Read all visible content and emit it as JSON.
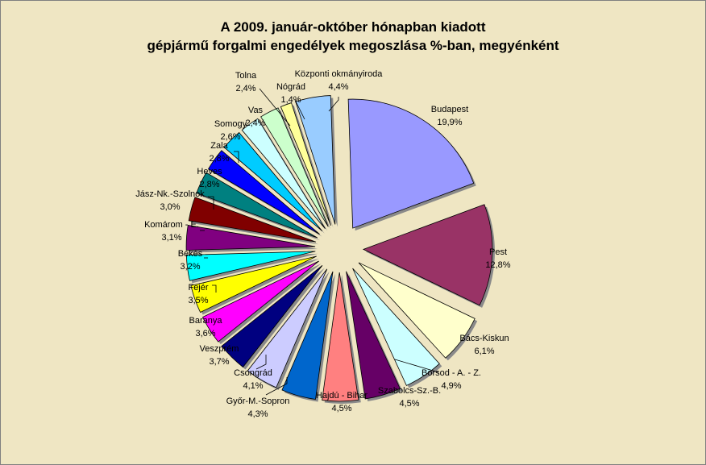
{
  "chart_data": {
    "type": "pie",
    "title_lines": [
      "A  2009. január-október hónapban kiadott",
      "gépjármű forgalmi engedélyek megoszlása %-ban, megyénként"
    ],
    "slices": [
      {
        "name": "Budapest",
        "label": "19,9%",
        "value": 19.9,
        "color": "#9999ff"
      },
      {
        "name": "Pest",
        "label": "12,8%",
        "value": 12.8,
        "color": "#993366"
      },
      {
        "name": "Bács-Kiskun",
        "label": "6,1%",
        "value": 6.1,
        "color": "#ffffcc"
      },
      {
        "name": "Borsod - A. - Z.",
        "label": "4,9%",
        "value": 4.9,
        "color": "#ccffff"
      },
      {
        "name": "Szabolcs-Sz.-B.",
        "label": "4,5%",
        "value": 4.5,
        "color": "#660066"
      },
      {
        "name": "Hajdú - Bihar",
        "label": "4,5%",
        "value": 4.5,
        "color": "#ff8080"
      },
      {
        "name": "Győr-M.-Sopron",
        "label": "4,3%",
        "value": 4.3,
        "color": "#0066cc"
      },
      {
        "name": "Csongrád",
        "label": "4,1%",
        "value": 4.1,
        "color": "#ccccff"
      },
      {
        "name": "Veszprém",
        "label": "3,7%",
        "value": 3.7,
        "color": "#000080"
      },
      {
        "name": "Baranya",
        "label": "3,6%",
        "value": 3.6,
        "color": "#ff00ff"
      },
      {
        "name": "Fejér",
        "label": "3,5%",
        "value": 3.5,
        "color": "#ffff00"
      },
      {
        "name": "Békés",
        "label": "3,2%",
        "value": 3.2,
        "color": "#00ffff"
      },
      {
        "name": "Komárom - E.",
        "label": "3,1%",
        "value": 3.1,
        "color": "#800080"
      },
      {
        "name": "Jász-Nk.-Szolnok",
        "label": "3,0%",
        "value": 3.0,
        "color": "#800000"
      },
      {
        "name": "Heves",
        "label": "2,8%",
        "value": 2.8,
        "color": "#008080"
      },
      {
        "name": "Zala",
        "label": "2,8%",
        "value": 2.8,
        "color": "#0000ff"
      },
      {
        "name": "Somogy",
        "label": "2,6%",
        "value": 2.6,
        "color": "#00ccff"
      },
      {
        "name": "Vas",
        "label": "2,4%",
        "value": 2.4,
        "color": "#ccffff"
      },
      {
        "name": "Tolna",
        "label": "2,4%",
        "value": 2.4,
        "color": "#ccffcc"
      },
      {
        "name": "Nógrád",
        "label": "1,4%",
        "value": 1.4,
        "color": "#ffff99"
      },
      {
        "name": "Központi okmányiroda",
        "label": "4,4%",
        "value": 4.4,
        "color": "#99ccff"
      }
    ]
  }
}
